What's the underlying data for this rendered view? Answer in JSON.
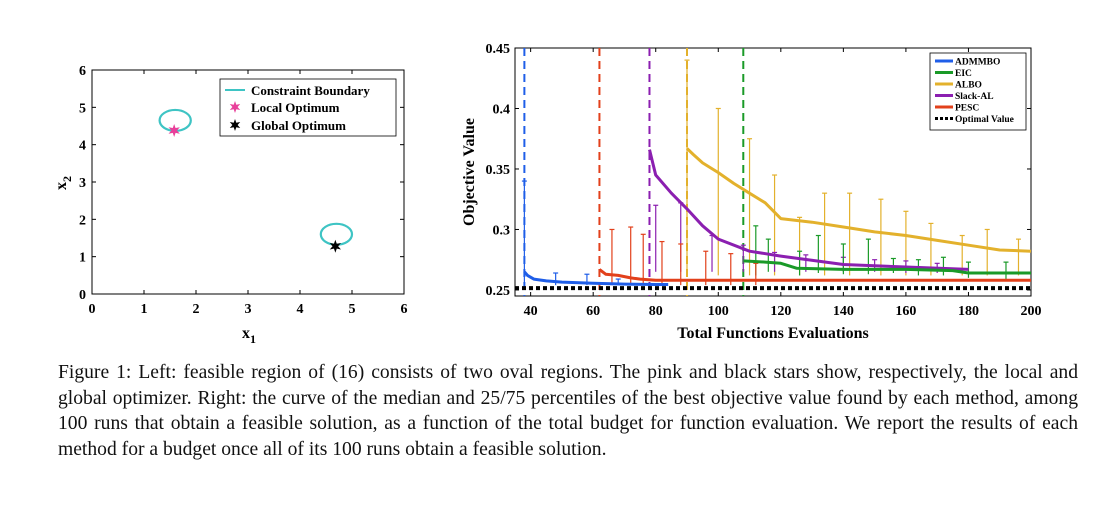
{
  "caption": "Figure 1: Left: feasible region of (16) consists of two oval regions. The pink and black stars show, respectively, the local and global optimizer. Right: the curve of the median and 25/75 percentiles of the best objective value found by each method, among 100 runs that obtain a feasible solution, as a function of the total budget for function evaluation. We report the results of each method for a budget once all of its 100 runs obtain a feasible solution.",
  "chart_data": [
    {
      "type": "scatter",
      "xlabel": "x",
      "xlabel_sub": "1",
      "ylabel": "x",
      "ylabel_sub": "2",
      "xlim": [
        0,
        6
      ],
      "ylim": [
        0,
        6
      ],
      "xticks": [
        "0",
        "1",
        "2",
        "3",
        "4",
        "5",
        "6"
      ],
      "yticks": [
        "0",
        "1",
        "2",
        "3",
        "4",
        "5",
        "6"
      ],
      "legend_position": "top-right",
      "legend": [
        "Constraint Boundary",
        "Local Optimum",
        "Global Optimum"
      ],
      "colors": {
        "boundary": "#3ec4c4",
        "local": "#e8409a",
        "global": "#000000"
      },
      "boundaries": [
        {
          "cx": 1.6,
          "cy": 4.65,
          "rx": 0.3,
          "ry": 0.28
        },
        {
          "cx": 4.7,
          "cy": 1.6,
          "rx": 0.3,
          "ry": 0.28
        }
      ],
      "local_optimum": {
        "x": 1.58,
        "y": 4.38
      },
      "global_optimum": {
        "x": 4.68,
        "y": 1.28
      }
    },
    {
      "type": "line",
      "xlabel": "Total Functions Evaluations",
      "ylabel": "Objective Value",
      "xlim": [
        35,
        200
      ],
      "ylim": [
        0.245,
        0.45
      ],
      "xticks": [
        "40",
        "60",
        "80",
        "100",
        "120",
        "140",
        "160",
        "180",
        "200"
      ],
      "yticks": [
        "0.25",
        "0.3",
        "0.35",
        "0.4",
        "0.45"
      ],
      "legend_position": "top-right",
      "optimal_value": 0.2515,
      "series": [
        {
          "name": "ADMMBO",
          "color": "#1f5ee8",
          "start": 38,
          "x": [
            38,
            39,
            41,
            45,
            50,
            60,
            70,
            80,
            84
          ],
          "y": [
            0.265,
            0.262,
            0.259,
            0.2575,
            0.2565,
            0.2555,
            0.2548,
            0.2545,
            0.2545
          ],
          "err": [
            [
              38,
              0.252,
              0.34
            ],
            [
              48,
              0.254,
              0.264
            ],
            [
              58,
              0.254,
              0.263
            ],
            [
              68,
              0.254,
              0.259
            ]
          ]
        },
        {
          "name": "EIC",
          "color": "#1a9a28",
          "start": 108,
          "x": [
            108,
            115,
            120,
            125,
            140,
            160,
            175,
            180,
            200
          ],
          "y": [
            0.274,
            0.273,
            0.272,
            0.268,
            0.267,
            0.267,
            0.266,
            0.264,
            0.264
          ],
          "err": [
            [
              112,
              0.262,
              0.303
            ],
            [
              116,
              0.265,
              0.292
            ],
            [
              126,
              0.262,
              0.282
            ],
            [
              132,
              0.264,
              0.295
            ],
            [
              140,
              0.263,
              0.288
            ],
            [
              148,
              0.263,
              0.292
            ],
            [
              156,
              0.264,
              0.276
            ],
            [
              164,
              0.262,
              0.275
            ],
            [
              172,
              0.262,
              0.277
            ],
            [
              180,
              0.26,
              0.273
            ],
            [
              192,
              0.259,
              0.273
            ]
          ]
        },
        {
          "name": "ALBO",
          "color": "#e3b12c",
          "start": 90,
          "x": [
            90,
            92,
            95,
            100,
            105,
            110,
            115,
            120,
            130,
            140,
            150,
            160,
            170,
            180,
            190,
            200
          ],
          "y": [
            0.367,
            0.362,
            0.355,
            0.347,
            0.338,
            0.33,
            0.322,
            0.309,
            0.306,
            0.302,
            0.298,
            0.295,
            0.291,
            0.287,
            0.283,
            0.282
          ],
          "err": [
            [
              90,
              0.262,
              0.44
            ],
            [
              100,
              0.262,
              0.4
            ],
            [
              110,
              0.262,
              0.375
            ],
            [
              118,
              0.262,
              0.345
            ],
            [
              126,
              0.262,
              0.31
            ],
            [
              134,
              0.262,
              0.33
            ],
            [
              142,
              0.262,
              0.33
            ],
            [
              152,
              0.262,
              0.325
            ],
            [
              160,
              0.262,
              0.315
            ],
            [
              168,
              0.262,
              0.305
            ],
            [
              178,
              0.262,
              0.295
            ],
            [
              186,
              0.262,
              0.3
            ],
            [
              196,
              0.262,
              0.292
            ]
          ]
        },
        {
          "name": "Slack-AL",
          "color": "#8b1fb0",
          "start": 78,
          "x": [
            78,
            80,
            85,
            90,
            95,
            100,
            110,
            120,
            140,
            160,
            180
          ],
          "y": [
            0.366,
            0.345,
            0.33,
            0.317,
            0.303,
            0.292,
            0.282,
            0.278,
            0.271,
            0.269,
            0.267
          ],
          "err": [
            [
              80,
              0.265,
              0.32
            ],
            [
              88,
              0.265,
              0.322
            ],
            [
              98,
              0.265,
              0.295
            ],
            [
              108,
              0.265,
              0.287
            ],
            [
              118,
              0.265,
              0.281
            ],
            [
              128,
              0.265,
              0.279
            ],
            [
              140,
              0.265,
              0.277
            ],
            [
              150,
              0.265,
              0.275
            ],
            [
              160,
              0.264,
              0.274
            ],
            [
              170,
              0.264,
              0.272
            ]
          ]
        },
        {
          "name": "PESC",
          "color": "#e2401b",
          "start": 62,
          "x": [
            62,
            64,
            68,
            72,
            75,
            80,
            120,
            160,
            200
          ],
          "y": [
            0.267,
            0.263,
            0.262,
            0.26,
            0.259,
            0.258,
            0.258,
            0.258,
            0.258
          ],
          "err": [
            [
              66,
              0.254,
              0.3
            ],
            [
              72,
              0.254,
              0.302
            ],
            [
              76,
              0.254,
              0.296
            ],
            [
              82,
              0.254,
              0.29
            ],
            [
              88,
              0.254,
              0.288
            ],
            [
              96,
              0.254,
              0.282
            ],
            [
              104,
              0.254,
              0.28
            ],
            [
              112,
              0.254,
              0.272
            ]
          ]
        },
        {
          "name": "Optimal Value",
          "color": "#000000",
          "start": null,
          "x": [
            35,
            200
          ],
          "y": [
            0.2515,
            0.2515
          ],
          "err": []
        }
      ]
    }
  ]
}
